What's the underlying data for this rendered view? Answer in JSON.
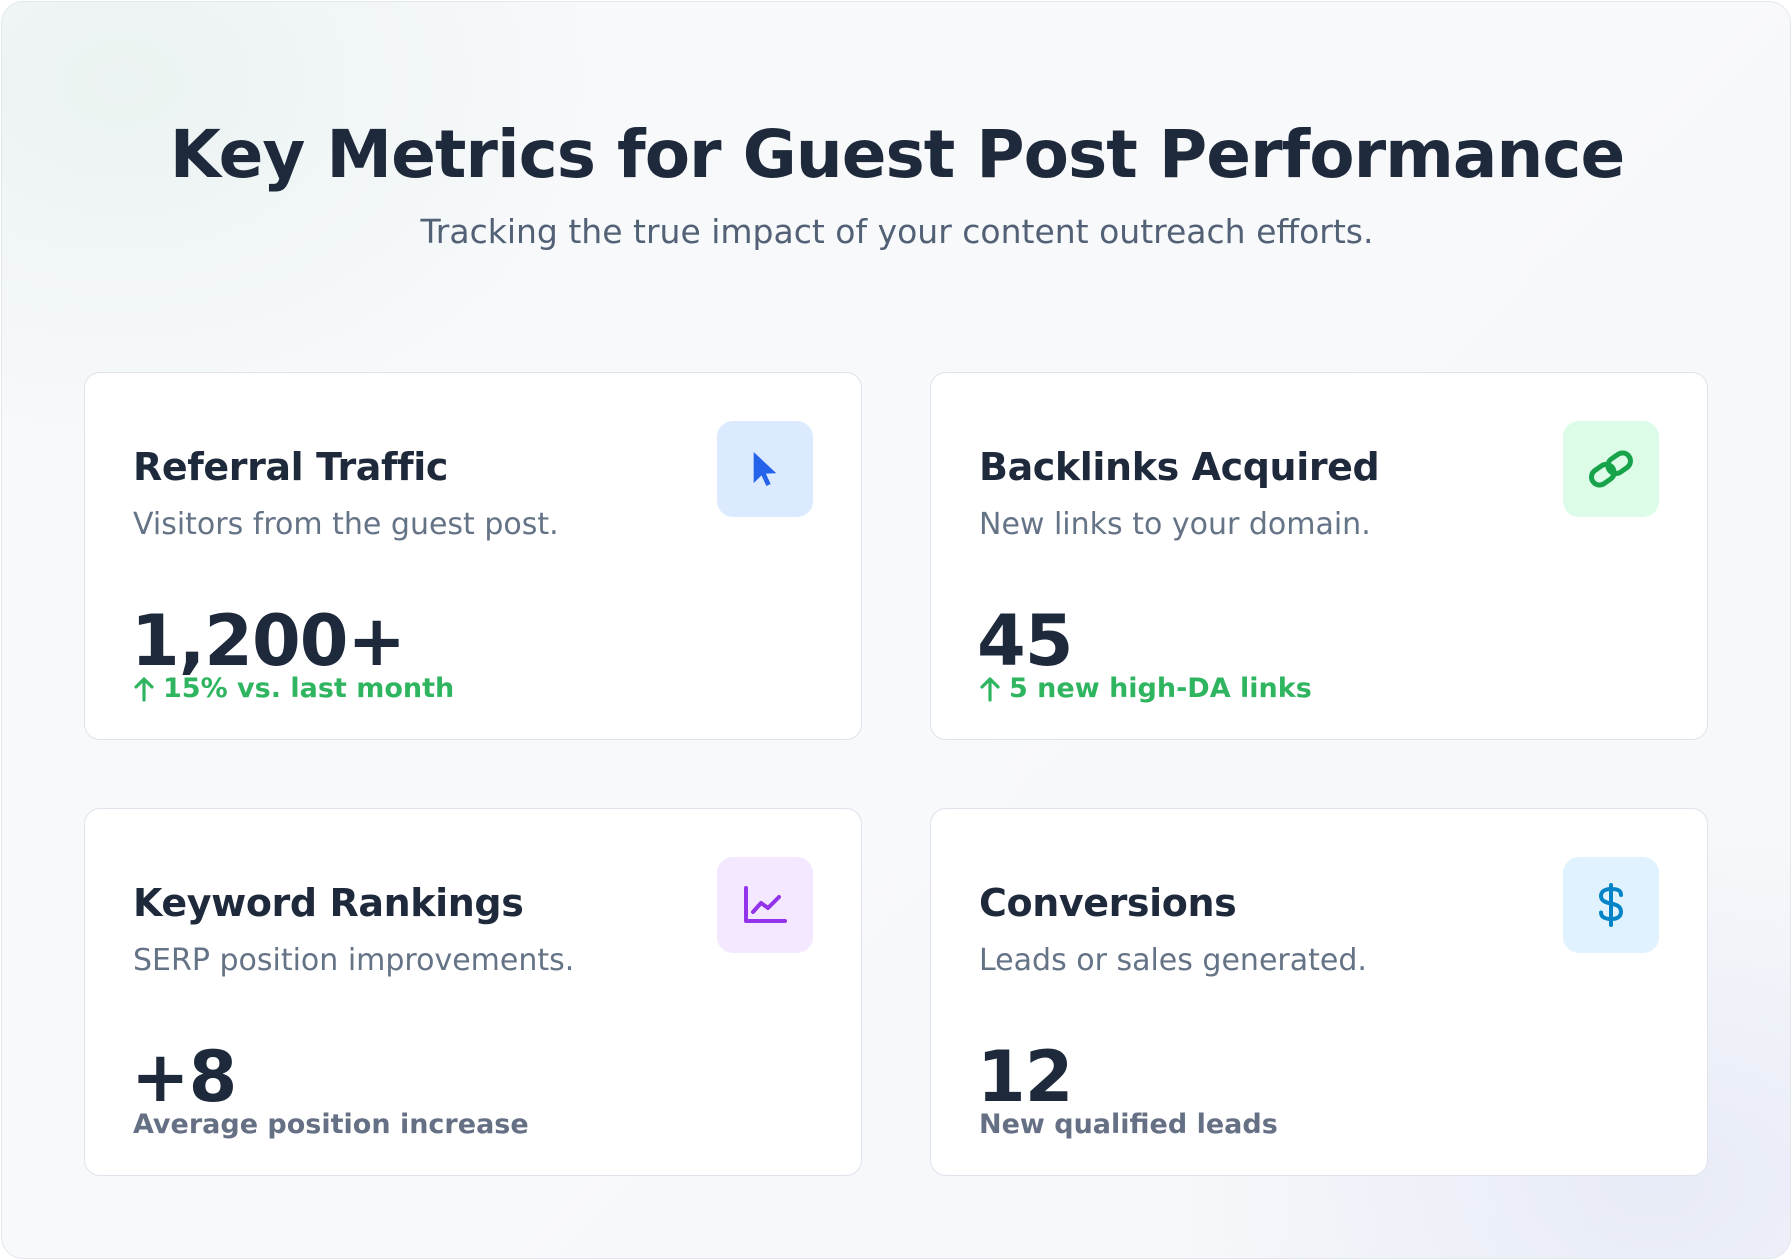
{
  "header": {
    "title": "Key Metrics for Guest Post Performance",
    "subtitle": "Tracking the true impact of your content outreach efforts."
  },
  "metrics": [
    {
      "title": "Referral Traffic",
      "description": "Visitors from the guest post.",
      "value": "1,200+",
      "note": "15% vs. last month",
      "note_trend": "up",
      "icon": "cursor-icon",
      "icon_color": "#2563eb",
      "icon_bg": "#dbeafe"
    },
    {
      "title": "Backlinks Acquired",
      "description": "New links to your domain.",
      "value": "45",
      "note": "5 new high-DA links",
      "note_trend": "up",
      "icon": "link-icon",
      "icon_color": "#16a34a",
      "icon_bg": "#dcfce7"
    },
    {
      "title": "Keyword Rankings",
      "description": "SERP position improvements.",
      "value": "+8",
      "note": "Average position increase",
      "note_trend": "none",
      "icon": "line-chart-icon",
      "icon_color": "#9333ea",
      "icon_bg": "#f3e8ff"
    },
    {
      "title": "Conversions",
      "description": "Leads or sales generated.",
      "value": "12",
      "note": "New qualified leads",
      "note_trend": "none",
      "icon": "dollar-icon",
      "icon_color": "#0284c7",
      "icon_bg": "#e0f2fe"
    }
  ],
  "colors": {
    "positive": "#2fb560",
    "neutral_note": "#667085",
    "heading": "#1e293b"
  }
}
